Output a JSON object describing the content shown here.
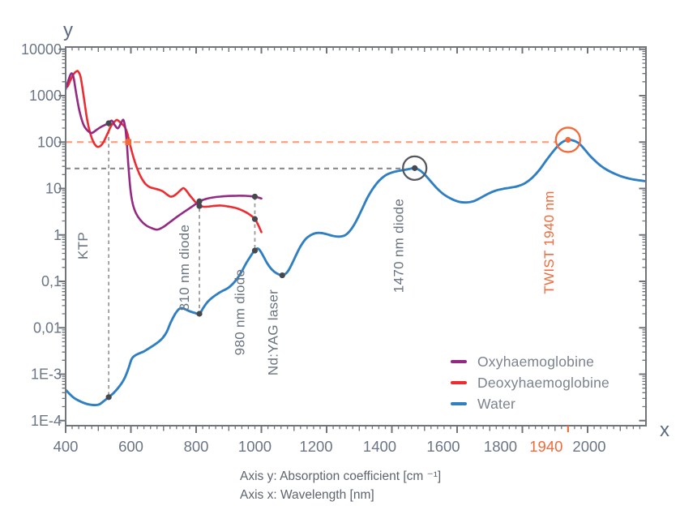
{
  "axes": {
    "y_letter": "y",
    "x_letter": "x",
    "y_ticks": [
      {
        "label": "10000",
        "value": 10000
      },
      {
        "label": "1000",
        "value": 1000
      },
      {
        "label": "100",
        "value": 100
      },
      {
        "label": "10",
        "value": 10
      },
      {
        "label": "1",
        "value": 1
      },
      {
        "label": "0,1",
        "value": 0.1
      },
      {
        "label": "0,01",
        "value": 0.01
      },
      {
        "label": "1E-3",
        "value": 0.001
      },
      {
        "label": "1E-4",
        "value": 0.0001
      }
    ],
    "x_ticks": [
      {
        "label": "400",
        "value": 400,
        "offset": 0,
        "accent": false
      },
      {
        "label": "600",
        "value": 600,
        "offset": 0,
        "accent": false
      },
      {
        "label": "800",
        "value": 800,
        "offset": 0,
        "accent": false
      },
      {
        "label": "1000",
        "value": 1000,
        "offset": -8,
        "accent": false
      },
      {
        "label": "1200",
        "value": 1200,
        "offset": -13,
        "accent": false
      },
      {
        "label": "1400",
        "value": 1400,
        "offset": -15,
        "accent": false
      },
      {
        "label": "1600",
        "value": 1600,
        "offset": -17,
        "accent": false
      },
      {
        "label": "1800",
        "value": 1800,
        "offset": -27,
        "accent": false
      },
      {
        "label": "1940",
        "value": 1940,
        "offset": -27,
        "accent": true
      },
      {
        "label": "2000",
        "value": 2000,
        "offset": 2,
        "accent": false
      }
    ]
  },
  "legend": {
    "items": [
      {
        "label": "Oxyhaemoglobine",
        "color": "#942984"
      },
      {
        "label": "Deoxyhaemoglobine",
        "color": "#ee2b30"
      },
      {
        "label": "Water",
        "color": "#2f7fc2"
      }
    ]
  },
  "caption": {
    "line1": "Axis y: Absorption coefficient [cm ⁻¹]",
    "line2": "Axis x: Wavelength [nm]"
  },
  "colors": {
    "axis": "#70757c",
    "tick_label": "#6b7585",
    "axis_letter": "#5c6b80",
    "annotation": "#6a7380",
    "accent_orange": "#f2693a",
    "accent_orange_light": "#f9a07c",
    "guide_gray": "#87898d",
    "vguide_gray": "#999b9e",
    "dot": "#45494e"
  },
  "annotations": [
    {
      "text": "KTP",
      "x_nm": 532,
      "dx": -26,
      "y": 303,
      "accent": false
    },
    {
      "text": "810 nm diode",
      "x_nm": 810,
      "dx": -13,
      "y": 330,
      "accent": false
    },
    {
      "text": "980 nm diode",
      "x_nm": 980,
      "dx": -13,
      "y": 385,
      "accent": false
    },
    {
      "text": "Nd:YAG laser",
      "x_nm": 1064,
      "dx": -6,
      "y": 410,
      "accent": false
    },
    {
      "text": "1470 nm diode",
      "x_nm": 1470,
      "dx": -14,
      "y": 303,
      "accent": false
    },
    {
      "text": "TWIST 1940 nm",
      "x_nm": 1940,
      "dx": -18,
      "y": 299,
      "accent": true
    }
  ],
  "guides": {
    "horizontal": [
      {
        "y_value": 100,
        "x_from_nm": 400,
        "x_to_nm": 1903,
        "style": "orange"
      },
      {
        "y_value": 27,
        "x_from_nm": 400,
        "x_to_nm": 1432,
        "style": "gray"
      }
    ],
    "vertical": [
      {
        "x_nm": 532,
        "y_from": 255,
        "y_to": 0.00032
      },
      {
        "x_nm": 810,
        "y_from": 5.3,
        "y_to": 0.02
      },
      {
        "x_nm": 980,
        "y_from": 6.7,
        "y_to": 0.46
      }
    ]
  },
  "markers": {
    "dots": [
      [
        532,
        255
      ],
      [
        532,
        0.00032
      ],
      [
        810,
        5.3
      ],
      [
        810,
        4.2
      ],
      [
        810,
        0.02
      ],
      [
        980,
        6.7
      ],
      [
        980,
        2.2
      ],
      [
        980,
        0.46
      ],
      [
        1064,
        0.135
      ],
      [
        1470,
        27.5
      ]
    ],
    "orange_dot": [
      1940,
      112
    ],
    "orange_square": [
      592,
      100
    ]
  },
  "highlight_circles": [
    {
      "x_nm": 1470,
      "y_value": 27.5,
      "color": "#55595e",
      "r": 14.5
    },
    {
      "x_nm": 1940,
      "y_value": 112,
      "color": "#f2693a",
      "r": 15
    }
  ],
  "chart_data": {
    "type": "line",
    "title": "",
    "xlabel": "Wavelength [nm]",
    "ylabel": "Absorption coefficient [cm-1]",
    "x_range": [
      400,
      2180
    ],
    "y_scale": "log",
    "y_range": [
      0.0001,
      10000
    ],
    "grid": false,
    "legend_position": "lower right",
    "series": [
      {
        "name": "Oxyhaemoglobine",
        "color": "#942984",
        "points": [
          [
            400,
            1350
          ],
          [
            408,
            2100
          ],
          [
            417,
            3000
          ],
          [
            424,
            2500
          ],
          [
            432,
            1150
          ],
          [
            442,
            480
          ],
          [
            454,
            245
          ],
          [
            466,
            180
          ],
          [
            480,
            158
          ],
          [
            494,
            182
          ],
          [
            508,
            212
          ],
          [
            521,
            235
          ],
          [
            532,
            255
          ],
          [
            541,
            290
          ],
          [
            550,
            235
          ],
          [
            560,
            198
          ],
          [
            569,
            250
          ],
          [
            577,
            300
          ],
          [
            583,
            195
          ],
          [
            588,
            85
          ],
          [
            593,
            27
          ],
          [
            599,
            9
          ],
          [
            606,
            4.6
          ],
          [
            615,
            3.0
          ],
          [
            629,
            2.1
          ],
          [
            647,
            1.6
          ],
          [
            664,
            1.4
          ],
          [
            680,
            1.3
          ],
          [
            697,
            1.45
          ],
          [
            716,
            1.8
          ],
          [
            736,
            2.3
          ],
          [
            756,
            2.9
          ],
          [
            776,
            3.6
          ],
          [
            796,
            4.5
          ],
          [
            810,
            5.3
          ],
          [
            828,
            5.9
          ],
          [
            850,
            6.4
          ],
          [
            874,
            6.7
          ],
          [
            900,
            6.9
          ],
          [
            926,
            7.0
          ],
          [
            950,
            6.95
          ],
          [
            966,
            6.85
          ],
          [
            980,
            6.7
          ],
          [
            1000,
            6.1
          ]
        ]
      },
      {
        "name": "Deoxyhaemoglobine",
        "color": "#ee2b30",
        "points": [
          [
            400,
            1650
          ],
          [
            406,
            1580
          ],
          [
            414,
            2100
          ],
          [
            424,
            2900
          ],
          [
            432,
            3300
          ],
          [
            438,
            3340
          ],
          [
            446,
            2500
          ],
          [
            456,
            900
          ],
          [
            466,
            300
          ],
          [
            476,
            150
          ],
          [
            486,
            98
          ],
          [
            496,
            80
          ],
          [
            506,
            82
          ],
          [
            516,
            100
          ],
          [
            528,
            150
          ],
          [
            539,
            220
          ],
          [
            549,
            272
          ],
          [
            557,
            300
          ],
          [
            566,
            272
          ],
          [
            575,
            238
          ],
          [
            582,
            207
          ],
          [
            589,
            155
          ],
          [
            595,
            105
          ],
          [
            602,
            66
          ],
          [
            610,
            42
          ],
          [
            620,
            26
          ],
          [
            632,
            17
          ],
          [
            645,
            12.5
          ],
          [
            658,
            10.7
          ],
          [
            672,
            10.0
          ],
          [
            686,
            9.4
          ],
          [
            699,
            8.6
          ],
          [
            711,
            7.4
          ],
          [
            721,
            6.7
          ],
          [
            731,
            6.9
          ],
          [
            742,
            7.9
          ],
          [
            753,
            9.3
          ],
          [
            761,
            10.2
          ],
          [
            770,
            9.0
          ],
          [
            780,
            7.2
          ],
          [
            791,
            5.8
          ],
          [
            801,
            4.8
          ],
          [
            810,
            4.2
          ],
          [
            824,
            4.05
          ],
          [
            840,
            4.1
          ],
          [
            858,
            4.25
          ],
          [
            876,
            4.3
          ],
          [
            894,
            4.15
          ],
          [
            912,
            3.95
          ],
          [
            930,
            3.65
          ],
          [
            948,
            3.2
          ],
          [
            964,
            2.75
          ],
          [
            980,
            2.2
          ],
          [
            991,
            1.6
          ],
          [
            1000,
            1.15
          ]
        ]
      },
      {
        "name": "Water",
        "color": "#2f7fc2",
        "points": [
          [
            400,
            0.00046
          ],
          [
            425,
            0.00031
          ],
          [
            450,
            0.00025
          ],
          [
            475,
            0.00022
          ],
          [
            500,
            0.00022
          ],
          [
            516,
            0.00026
          ],
          [
            532,
            0.00032
          ],
          [
            548,
            0.0004
          ],
          [
            565,
            0.00055
          ],
          [
            580,
            0.0008
          ],
          [
            592,
            0.0013
          ],
          [
            602,
            0.0021
          ],
          [
            612,
            0.0025
          ],
          [
            625,
            0.0028
          ],
          [
            640,
            0.0031
          ],
          [
            655,
            0.0036
          ],
          [
            670,
            0.0042
          ],
          [
            685,
            0.005
          ],
          [
            698,
            0.0061
          ],
          [
            710,
            0.0082
          ],
          [
            722,
            0.013
          ],
          [
            736,
            0.02
          ],
          [
            748,
            0.0255
          ],
          [
            757,
            0.0265
          ],
          [
            768,
            0.0248
          ],
          [
            780,
            0.0227
          ],
          [
            795,
            0.021
          ],
          [
            810,
            0.02
          ],
          [
            822,
            0.027
          ],
          [
            835,
            0.036
          ],
          [
            850,
            0.045
          ],
          [
            866,
            0.054
          ],
          [
            882,
            0.063
          ],
          [
            898,
            0.072
          ],
          [
            912,
            0.088
          ],
          [
            926,
            0.115
          ],
          [
            940,
            0.165
          ],
          [
            954,
            0.25
          ],
          [
            967,
            0.35
          ],
          [
            975,
            0.425
          ],
          [
            980,
            0.46
          ],
          [
            988,
            0.51
          ],
          [
            996,
            0.46
          ],
          [
            1006,
            0.35
          ],
          [
            1018,
            0.245
          ],
          [
            1032,
            0.18
          ],
          [
            1046,
            0.15
          ],
          [
            1064,
            0.135
          ],
          [
            1080,
            0.16
          ],
          [
            1094,
            0.24
          ],
          [
            1108,
            0.39
          ],
          [
            1122,
            0.6
          ],
          [
            1136,
            0.82
          ],
          [
            1152,
            1.0
          ],
          [
            1168,
            1.1
          ],
          [
            1185,
            1.1
          ],
          [
            1202,
            1.03
          ],
          [
            1220,
            0.95
          ],
          [
            1240,
            0.92
          ],
          [
            1258,
            1.0
          ],
          [
            1276,
            1.35
          ],
          [
            1294,
            2.2
          ],
          [
            1310,
            3.8
          ],
          [
            1326,
            6.5
          ],
          [
            1344,
            10.5
          ],
          [
            1362,
            15
          ],
          [
            1382,
            19.5
          ],
          [
            1404,
            22.5
          ],
          [
            1428,
            24.5
          ],
          [
            1450,
            26
          ],
          [
            1470,
            27.5
          ],
          [
            1488,
            24
          ],
          [
            1505,
            18.5
          ],
          [
            1522,
            13.5
          ],
          [
            1540,
            9.8
          ],
          [
            1560,
            7.4
          ],
          [
            1582,
            6.0
          ],
          [
            1605,
            5.2
          ],
          [
            1628,
            5.0
          ],
          [
            1650,
            5.3
          ],
          [
            1672,
            6.3
          ],
          [
            1695,
            7.7
          ],
          [
            1718,
            9.0
          ],
          [
            1740,
            9.8
          ],
          [
            1762,
            10.4
          ],
          [
            1785,
            11.2
          ],
          [
            1808,
            13
          ],
          [
            1830,
            17
          ],
          [
            1852,
            25
          ],
          [
            1874,
            41
          ],
          [
            1896,
            65
          ],
          [
            1914,
            90
          ],
          [
            1928,
            105
          ],
          [
            1940,
            112
          ],
          [
            1952,
            110
          ],
          [
            1964,
            103
          ],
          [
            1978,
            88
          ],
          [
            1992,
            68
          ],
          [
            2006,
            52
          ],
          [
            2022,
            40
          ],
          [
            2040,
            31
          ],
          [
            2060,
            25
          ],
          [
            2082,
            21
          ],
          [
            2106,
            18
          ],
          [
            2130,
            16.2
          ],
          [
            2152,
            15.2
          ],
          [
            2175,
            14.5
          ]
        ]
      }
    ],
    "annotations_text": [
      "KTP",
      "810 nm diode",
      "980 nm diode",
      "Nd:YAG laser",
      "1470 nm diode",
      "TWIST 1940 nm"
    ]
  }
}
